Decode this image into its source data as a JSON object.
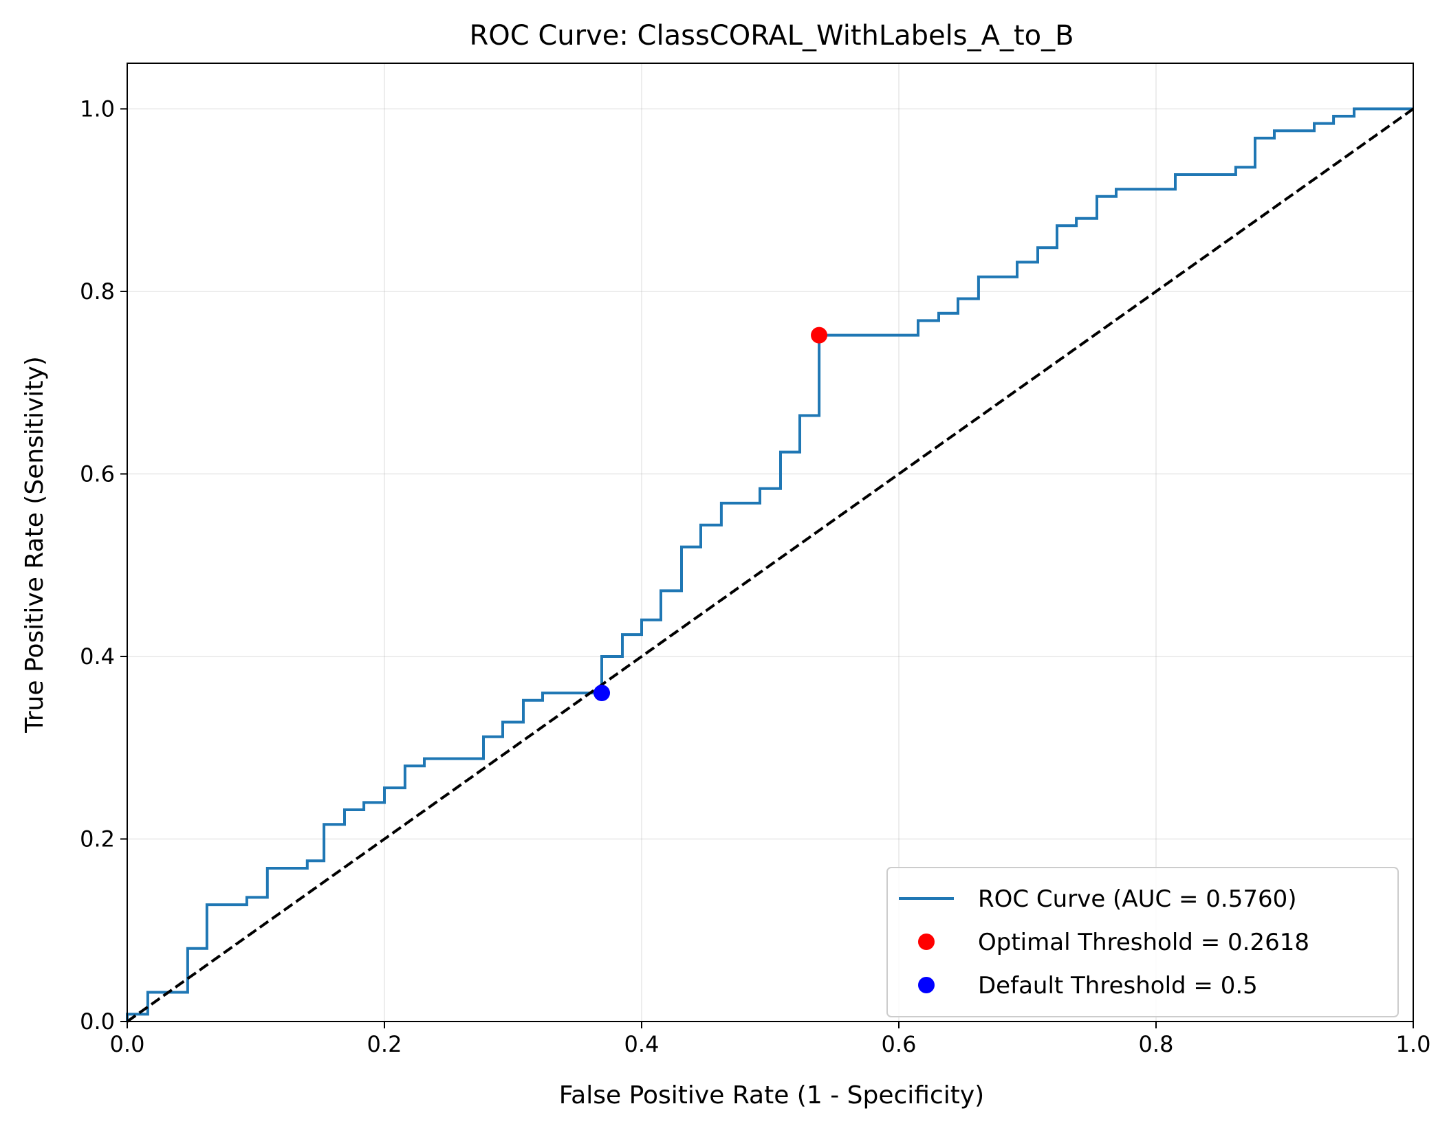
{
  "chart_data": {
    "type": "line",
    "title": "ROC Curve: ClassCORAL_WithLabels_A_to_B",
    "xlabel": "False Positive Rate (1 - Specificity)",
    "ylabel": "True Positive Rate (Sensitivity)",
    "xlim": [
      0.0,
      1.0
    ],
    "ylim": [
      0.0,
      1.05
    ],
    "x_ticks": [
      0.0,
      0.2,
      0.4,
      0.6,
      0.8,
      1.0
    ],
    "y_ticks": [
      0.0,
      0.2,
      0.4,
      0.6,
      0.8,
      1.0
    ],
    "x_tick_labels": [
      "0.0",
      "0.2",
      "0.4",
      "0.6",
      "0.8",
      "1.0"
    ],
    "y_tick_labels": [
      "0.0",
      "0.2",
      "0.4",
      "0.6",
      "0.8",
      "1.0"
    ],
    "grid": true,
    "legend_position": "lower-right",
    "series": [
      {
        "name": "ROC Curve (AUC = 0.5760)",
        "kind": "step-line",
        "color": "#1f77b4",
        "points": [
          [
            0.0,
            0.0
          ],
          [
            0.0,
            0.008
          ],
          [
            0.016,
            0.008
          ],
          [
            0.016,
            0.032
          ],
          [
            0.047,
            0.032
          ],
          [
            0.047,
            0.08
          ],
          [
            0.062,
            0.08
          ],
          [
            0.062,
            0.128
          ],
          [
            0.093,
            0.128
          ],
          [
            0.093,
            0.136
          ],
          [
            0.109,
            0.136
          ],
          [
            0.109,
            0.168
          ],
          [
            0.14,
            0.168
          ],
          [
            0.14,
            0.176
          ],
          [
            0.153,
            0.176
          ],
          [
            0.153,
            0.216
          ],
          [
            0.169,
            0.216
          ],
          [
            0.169,
            0.232
          ],
          [
            0.184,
            0.232
          ],
          [
            0.184,
            0.24
          ],
          [
            0.2,
            0.24
          ],
          [
            0.2,
            0.256
          ],
          [
            0.216,
            0.256
          ],
          [
            0.216,
            0.28
          ],
          [
            0.231,
            0.28
          ],
          [
            0.231,
            0.288
          ],
          [
            0.277,
            0.288
          ],
          [
            0.277,
            0.312
          ],
          [
            0.292,
            0.312
          ],
          [
            0.292,
            0.328
          ],
          [
            0.308,
            0.328
          ],
          [
            0.308,
            0.352
          ],
          [
            0.323,
            0.352
          ],
          [
            0.323,
            0.36
          ],
          [
            0.369,
            0.36
          ],
          [
            0.369,
            0.4
          ],
          [
            0.385,
            0.4
          ],
          [
            0.385,
            0.424
          ],
          [
            0.4,
            0.424
          ],
          [
            0.4,
            0.44
          ],
          [
            0.415,
            0.44
          ],
          [
            0.415,
            0.472
          ],
          [
            0.431,
            0.472
          ],
          [
            0.431,
            0.52
          ],
          [
            0.446,
            0.52
          ],
          [
            0.446,
            0.544
          ],
          [
            0.462,
            0.544
          ],
          [
            0.462,
            0.568
          ],
          [
            0.492,
            0.568
          ],
          [
            0.492,
            0.584
          ],
          [
            0.508,
            0.584
          ],
          [
            0.508,
            0.624
          ],
          [
            0.523,
            0.624
          ],
          [
            0.523,
            0.664
          ],
          [
            0.538,
            0.664
          ],
          [
            0.538,
            0.752
          ],
          [
            0.615,
            0.752
          ],
          [
            0.615,
            0.768
          ],
          [
            0.631,
            0.768
          ],
          [
            0.631,
            0.776
          ],
          [
            0.646,
            0.776
          ],
          [
            0.646,
            0.792
          ],
          [
            0.662,
            0.792
          ],
          [
            0.662,
            0.816
          ],
          [
            0.692,
            0.816
          ],
          [
            0.692,
            0.832
          ],
          [
            0.708,
            0.832
          ],
          [
            0.708,
            0.848
          ],
          [
            0.723,
            0.848
          ],
          [
            0.723,
            0.872
          ],
          [
            0.738,
            0.872
          ],
          [
            0.738,
            0.88
          ],
          [
            0.754,
            0.88
          ],
          [
            0.754,
            0.904
          ],
          [
            0.769,
            0.904
          ],
          [
            0.769,
            0.912
          ],
          [
            0.815,
            0.912
          ],
          [
            0.815,
            0.928
          ],
          [
            0.862,
            0.928
          ],
          [
            0.862,
            0.936
          ],
          [
            0.877,
            0.936
          ],
          [
            0.877,
            0.968
          ],
          [
            0.892,
            0.968
          ],
          [
            0.892,
            0.976
          ],
          [
            0.923,
            0.976
          ],
          [
            0.923,
            0.984
          ],
          [
            0.938,
            0.984
          ],
          [
            0.938,
            0.992
          ],
          [
            0.954,
            0.992
          ],
          [
            0.954,
            1.0
          ],
          [
            1.0,
            1.0
          ]
        ]
      },
      {
        "name": "",
        "kind": "dashed-line",
        "color": "#000000",
        "points": [
          [
            0.0,
            0.0
          ],
          [
            1.0,
            1.0
          ]
        ]
      },
      {
        "name": "Optimal Threshold = 0.2618",
        "kind": "marker",
        "color": "#ff0000",
        "points": [
          [
            0.538,
            0.752
          ]
        ]
      },
      {
        "name": "Default Threshold = 0.5",
        "kind": "marker",
        "color": "#0000ff",
        "points": [
          [
            0.369,
            0.36
          ]
        ]
      }
    ]
  }
}
